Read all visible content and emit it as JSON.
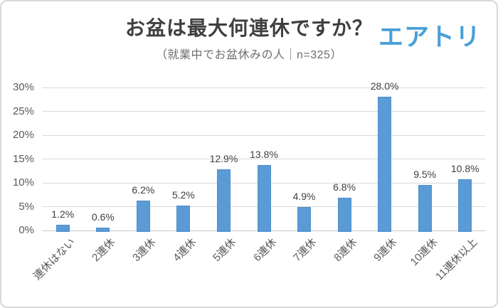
{
  "brand": {
    "logo_text": "エアトリ",
    "logo_color": "#4aa0d8"
  },
  "chart_data": {
    "type": "bar",
    "title": "お盆は最大何連休ですか？",
    "subtitle": "（就業中でお盆休みの人｜n=325）",
    "categories": [
      "連休はない",
      "2連休",
      "3連休",
      "4連休",
      "5連休",
      "6連休",
      "7連休",
      "8連休",
      "9連休",
      "10連休",
      "11連休以上"
    ],
    "values": [
      1.2,
      0.6,
      6.2,
      5.2,
      12.9,
      13.8,
      4.9,
      6.8,
      28.0,
      9.5,
      10.8
    ],
    "value_labels": [
      "1.2%",
      "0.6%",
      "6.2%",
      "5.2%",
      "12.9%",
      "13.8%",
      "4.9%",
      "6.8%",
      "28.0%",
      "9.5%",
      "10.8%"
    ],
    "xlabel": "",
    "ylabel": "",
    "ylim": [
      0,
      30
    ],
    "ytick_step": 5,
    "ytick_labels": [
      "0%",
      "5%",
      "10%",
      "15%",
      "20%",
      "25%",
      "30%"
    ],
    "grid": true,
    "legend": false,
    "xlabel_rotation_deg": -45,
    "colors": {
      "bar": "#5b9bd5",
      "bar_border": "#4e8fcb",
      "grid": "#d9d9d9",
      "axis_labels": "#595959",
      "data_labels": "#404040",
      "title": "#3f3f3f",
      "subtitle": "#6e6e6e"
    }
  }
}
